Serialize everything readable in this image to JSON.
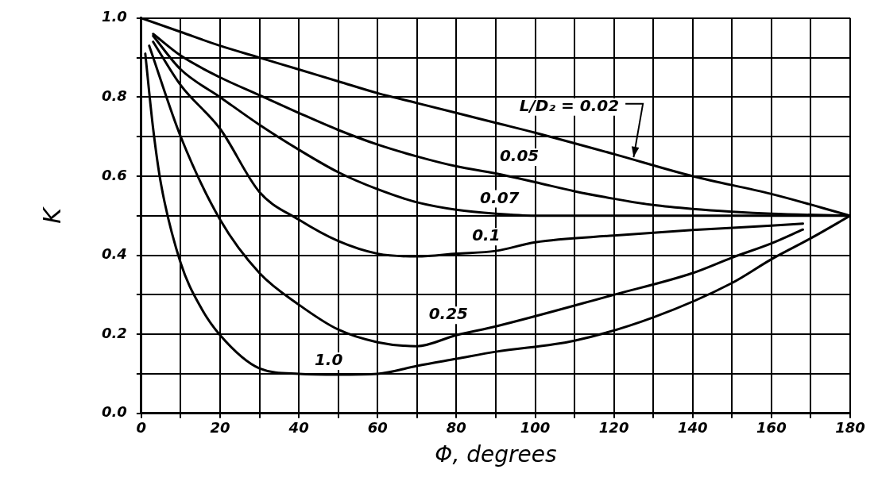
{
  "chart_data": {
    "type": "line",
    "xlabel": "Φ, degrees",
    "ylabel": "K",
    "xlim": [
      0,
      180
    ],
    "ylim": [
      0,
      1.0
    ],
    "xticks": [
      0,
      {
        "value": 10,
        "label": null
      },
      20,
      {
        "value": 30,
        "label": null
      },
      40,
      {
        "value": 50,
        "label": null
      },
      60,
      {
        "value": 70,
        "label": null
      },
      80,
      {
        "value": 90,
        "label": null
      },
      100,
      {
        "value": 110,
        "label": null
      },
      120,
      {
        "value": 130,
        "label": null
      },
      140,
      {
        "value": 150,
        "label": null
      },
      160,
      {
        "value": 170,
        "label": null
      },
      180
    ],
    "yticks": [
      {
        "value": 0,
        "label": "0.0"
      },
      {
        "value": 0.1,
        "label": null
      },
      0.2,
      {
        "value": 0.3,
        "label": null
      },
      0.4,
      {
        "value": 0.5,
        "label": null
      },
      0.6,
      {
        "value": 0.7,
        "label": null
      },
      0.8,
      {
        "value": 0.9,
        "label": null
      },
      {
        "value": 1.0,
        "label": "1.0"
      }
    ],
    "grid": true,
    "legend": false,
    "marker": "none",
    "line_style": "solid",
    "series": [
      {
        "name": "L/D₂ = 0.02",
        "color": "#000000",
        "x": [
          0,
          10,
          20,
          30,
          40,
          50,
          60,
          70,
          80,
          90,
          100,
          120,
          140,
          160,
          180
        ],
        "values": [
          1.0,
          0.965,
          0.93,
          0.9,
          0.87,
          0.84,
          0.81,
          0.785,
          0.76,
          0.735,
          0.71,
          0.656,
          0.6,
          0.555,
          0.5
        ]
      },
      {
        "name": "0.05",
        "color": "#000000",
        "x": [
          3,
          10,
          20,
          30,
          40,
          50,
          60,
          70,
          80,
          90,
          100,
          110,
          120,
          130,
          140,
          150,
          160,
          180
        ],
        "values": [
          0.96,
          0.905,
          0.85,
          0.805,
          0.76,
          0.717,
          0.68,
          0.65,
          0.625,
          0.607,
          0.585,
          0.562,
          0.543,
          0.527,
          0.517,
          0.51,
          0.505,
          0.5
        ]
      },
      {
        "name": "0.07",
        "color": "#000000",
        "x": [
          3,
          10,
          20,
          30,
          40,
          50,
          60,
          70,
          80,
          90,
          100,
          180
        ],
        "values": [
          0.955,
          0.87,
          0.8,
          0.73,
          0.667,
          0.61,
          0.567,
          0.534,
          0.515,
          0.505,
          0.5,
          0.5
        ]
      },
      {
        "name": "0.1",
        "color": "#000000",
        "x": [
          3,
          10,
          20,
          30,
          40,
          50,
          60,
          70,
          80,
          90,
          100,
          120,
          140,
          160,
          168
        ],
        "values": [
          0.94,
          0.83,
          0.72,
          0.56,
          0.49,
          0.436,
          0.404,
          0.397,
          0.404,
          0.411,
          0.433,
          0.45,
          0.464,
          0.475,
          0.48
        ]
      },
      {
        "name": "0.25",
        "color": "#000000",
        "x": [
          2,
          10,
          20,
          30,
          40,
          50,
          60,
          70,
          80,
          90,
          120,
          140,
          150,
          160,
          168
        ],
        "values": [
          0.93,
          0.7,
          0.49,
          0.355,
          0.275,
          0.212,
          0.18,
          0.17,
          0.198,
          0.22,
          0.3,
          0.355,
          0.394,
          0.43,
          0.465
        ]
      },
      {
        "name": "1.0",
        "color": "#000000",
        "x": [
          1,
          3,
          5,
          10,
          15,
          20,
          30,
          40,
          50,
          60,
          70,
          80,
          90,
          110,
          130,
          150,
          160,
          170,
          180
        ],
        "values": [
          0.91,
          0.72,
          0.58,
          0.38,
          0.27,
          0.198,
          0.114,
          0.1,
          0.098,
          0.1,
          0.12,
          0.138,
          0.156,
          0.184,
          0.243,
          0.33,
          0.39,
          0.443,
          0.5
        ]
      }
    ]
  }
}
